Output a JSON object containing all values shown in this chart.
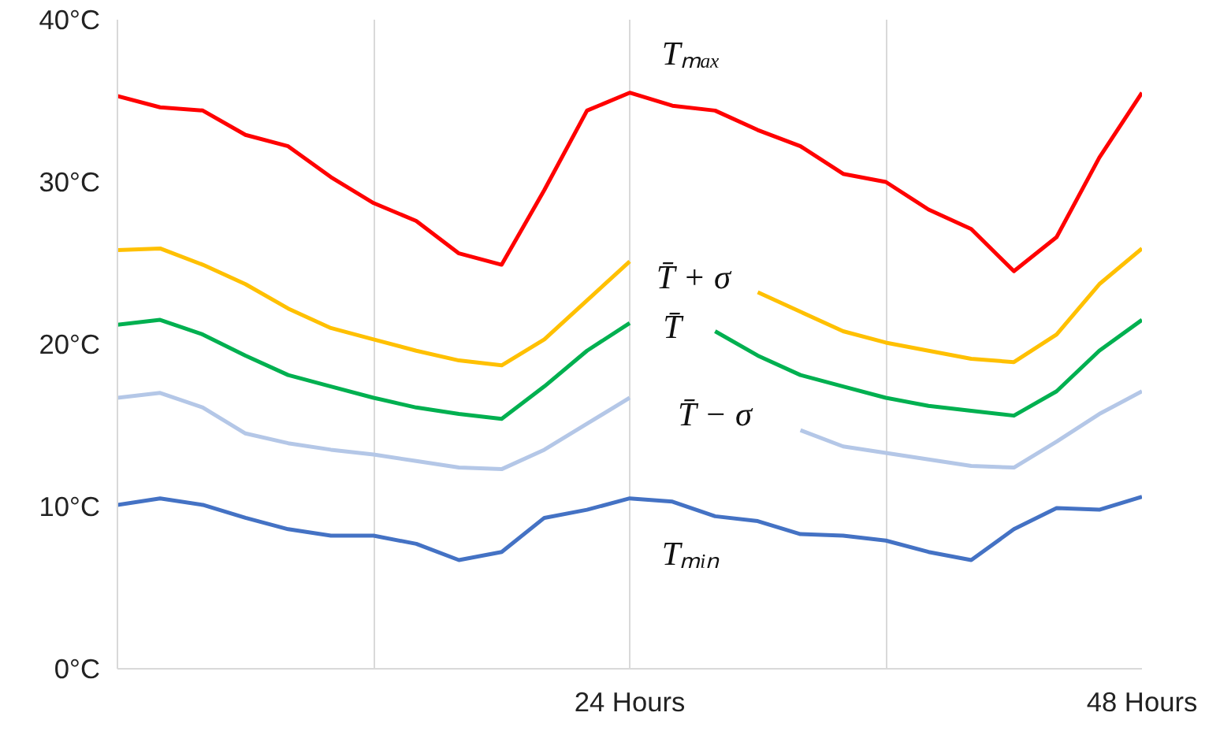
{
  "chart_data": {
    "type": "line",
    "x": [
      0,
      2,
      4,
      6,
      8,
      10,
      12,
      14,
      16,
      18,
      20,
      22,
      24,
      26,
      28,
      30,
      32,
      34,
      36,
      38,
      40,
      42,
      44,
      46,
      48
    ],
    "series": [
      {
        "name": "Tₘₐₓ",
        "color": "#ff0000",
        "values": [
          35.3,
          34.6,
          34.4,
          32.9,
          32.2,
          30.3,
          28.7,
          27.6,
          25.6,
          24.9,
          29.5,
          34.4,
          35.5,
          34.7,
          34.4,
          33.2,
          32.2,
          30.5,
          30.0,
          28.3,
          27.1,
          24.5,
          26.6,
          31.5,
          35.5
        ]
      },
      {
        "name": "T̄ + σ",
        "color": "#ffc000",
        "values": [
          25.8,
          25.9,
          24.9,
          23.7,
          22.2,
          21.0,
          20.3,
          19.6,
          19.0,
          18.7,
          20.3,
          22.7,
          25.1,
          null,
          null,
          23.2,
          22.0,
          20.8,
          20.1,
          19.6,
          19.1,
          18.9,
          20.6,
          23.7,
          25.9
        ]
      },
      {
        "name": "T̄",
        "color": "#00b050",
        "values": [
          21.2,
          21.5,
          20.6,
          19.3,
          18.1,
          17.4,
          16.7,
          16.1,
          15.7,
          15.4,
          17.4,
          19.6,
          21.3,
          null,
          20.8,
          19.3,
          18.1,
          17.4,
          16.7,
          16.2,
          15.9,
          15.6,
          17.1,
          19.6,
          21.5
        ]
      },
      {
        "name": "T̄ − σ",
        "color": "#b4c7e7",
        "values": [
          16.7,
          17.0,
          16.1,
          14.5,
          13.9,
          13.5,
          13.2,
          12.8,
          12.4,
          12.3,
          13.5,
          15.1,
          16.7,
          null,
          null,
          null,
          14.7,
          13.7,
          13.3,
          12.9,
          12.5,
          12.4,
          14.0,
          15.7,
          17.1
        ]
      },
      {
        "name": "Tₘᵢₙ",
        "color": "#4472c4",
        "values": [
          10.1,
          10.5,
          10.1,
          9.3,
          8.6,
          8.2,
          8.2,
          7.7,
          6.7,
          7.2,
          9.3,
          9.8,
          10.5,
          10.3,
          9.4,
          9.1,
          8.3,
          8.2,
          7.9,
          7.2,
          6.7,
          8.6,
          9.9,
          9.8,
          10.6
        ]
      }
    ],
    "xlim": [
      0,
      48
    ],
    "xticks": [
      {
        "value": 0,
        "label": null
      },
      {
        "value": 12,
        "label": null
      },
      {
        "value": 24,
        "label": "24 Hours"
      },
      {
        "value": 36,
        "label": null
      },
      {
        "value": 48,
        "label": "48 Hours"
      }
    ],
    "ylim": [
      0,
      40
    ],
    "yticks": [
      {
        "value": 0,
        "label": "0°C"
      },
      {
        "value": 10,
        "label": "10°C"
      },
      {
        "value": 20,
        "label": "20°C"
      },
      {
        "value": 30,
        "label": "30°C"
      },
      {
        "value": 40,
        "label": "40°C"
      }
    ],
    "grid": "x"
  }
}
